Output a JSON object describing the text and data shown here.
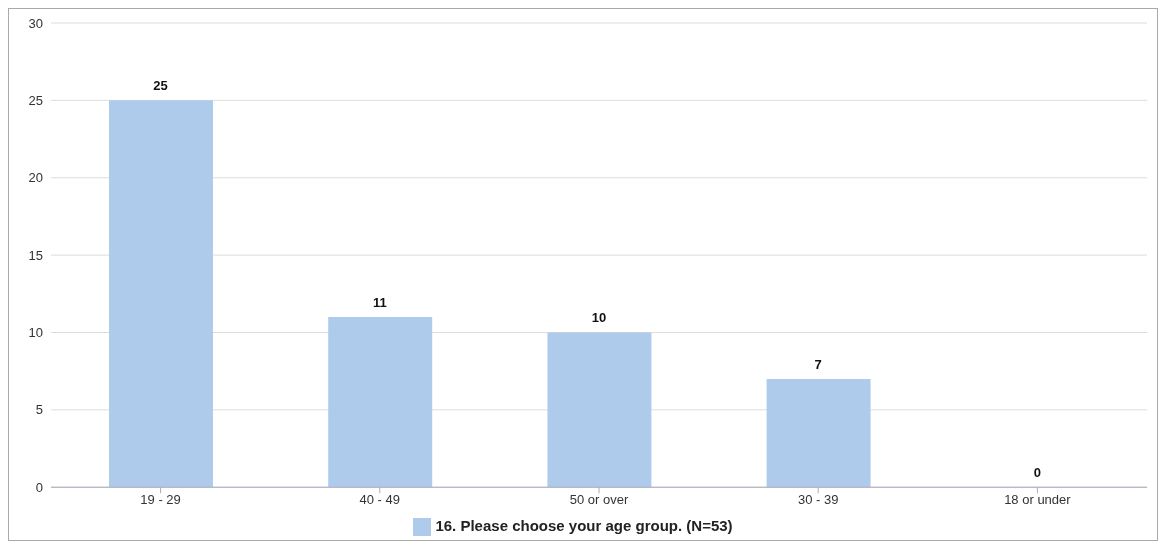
{
  "chart_data": {
    "type": "bar",
    "categories": [
      "19 - 29",
      "40 - 49",
      "50 or over",
      "30 - 39",
      "18 or under"
    ],
    "series": [
      {
        "name": "16. Please choose your age group. (N=53)",
        "color": "#aecbeb",
        "values": [
          25,
          11,
          10,
          7,
          0
        ]
      }
    ],
    "ylim": [
      0,
      30
    ],
    "yticks": [
      0,
      5,
      10,
      15,
      20,
      25,
      30
    ],
    "grid": "y",
    "legend": "bottom",
    "data_labels": true
  }
}
